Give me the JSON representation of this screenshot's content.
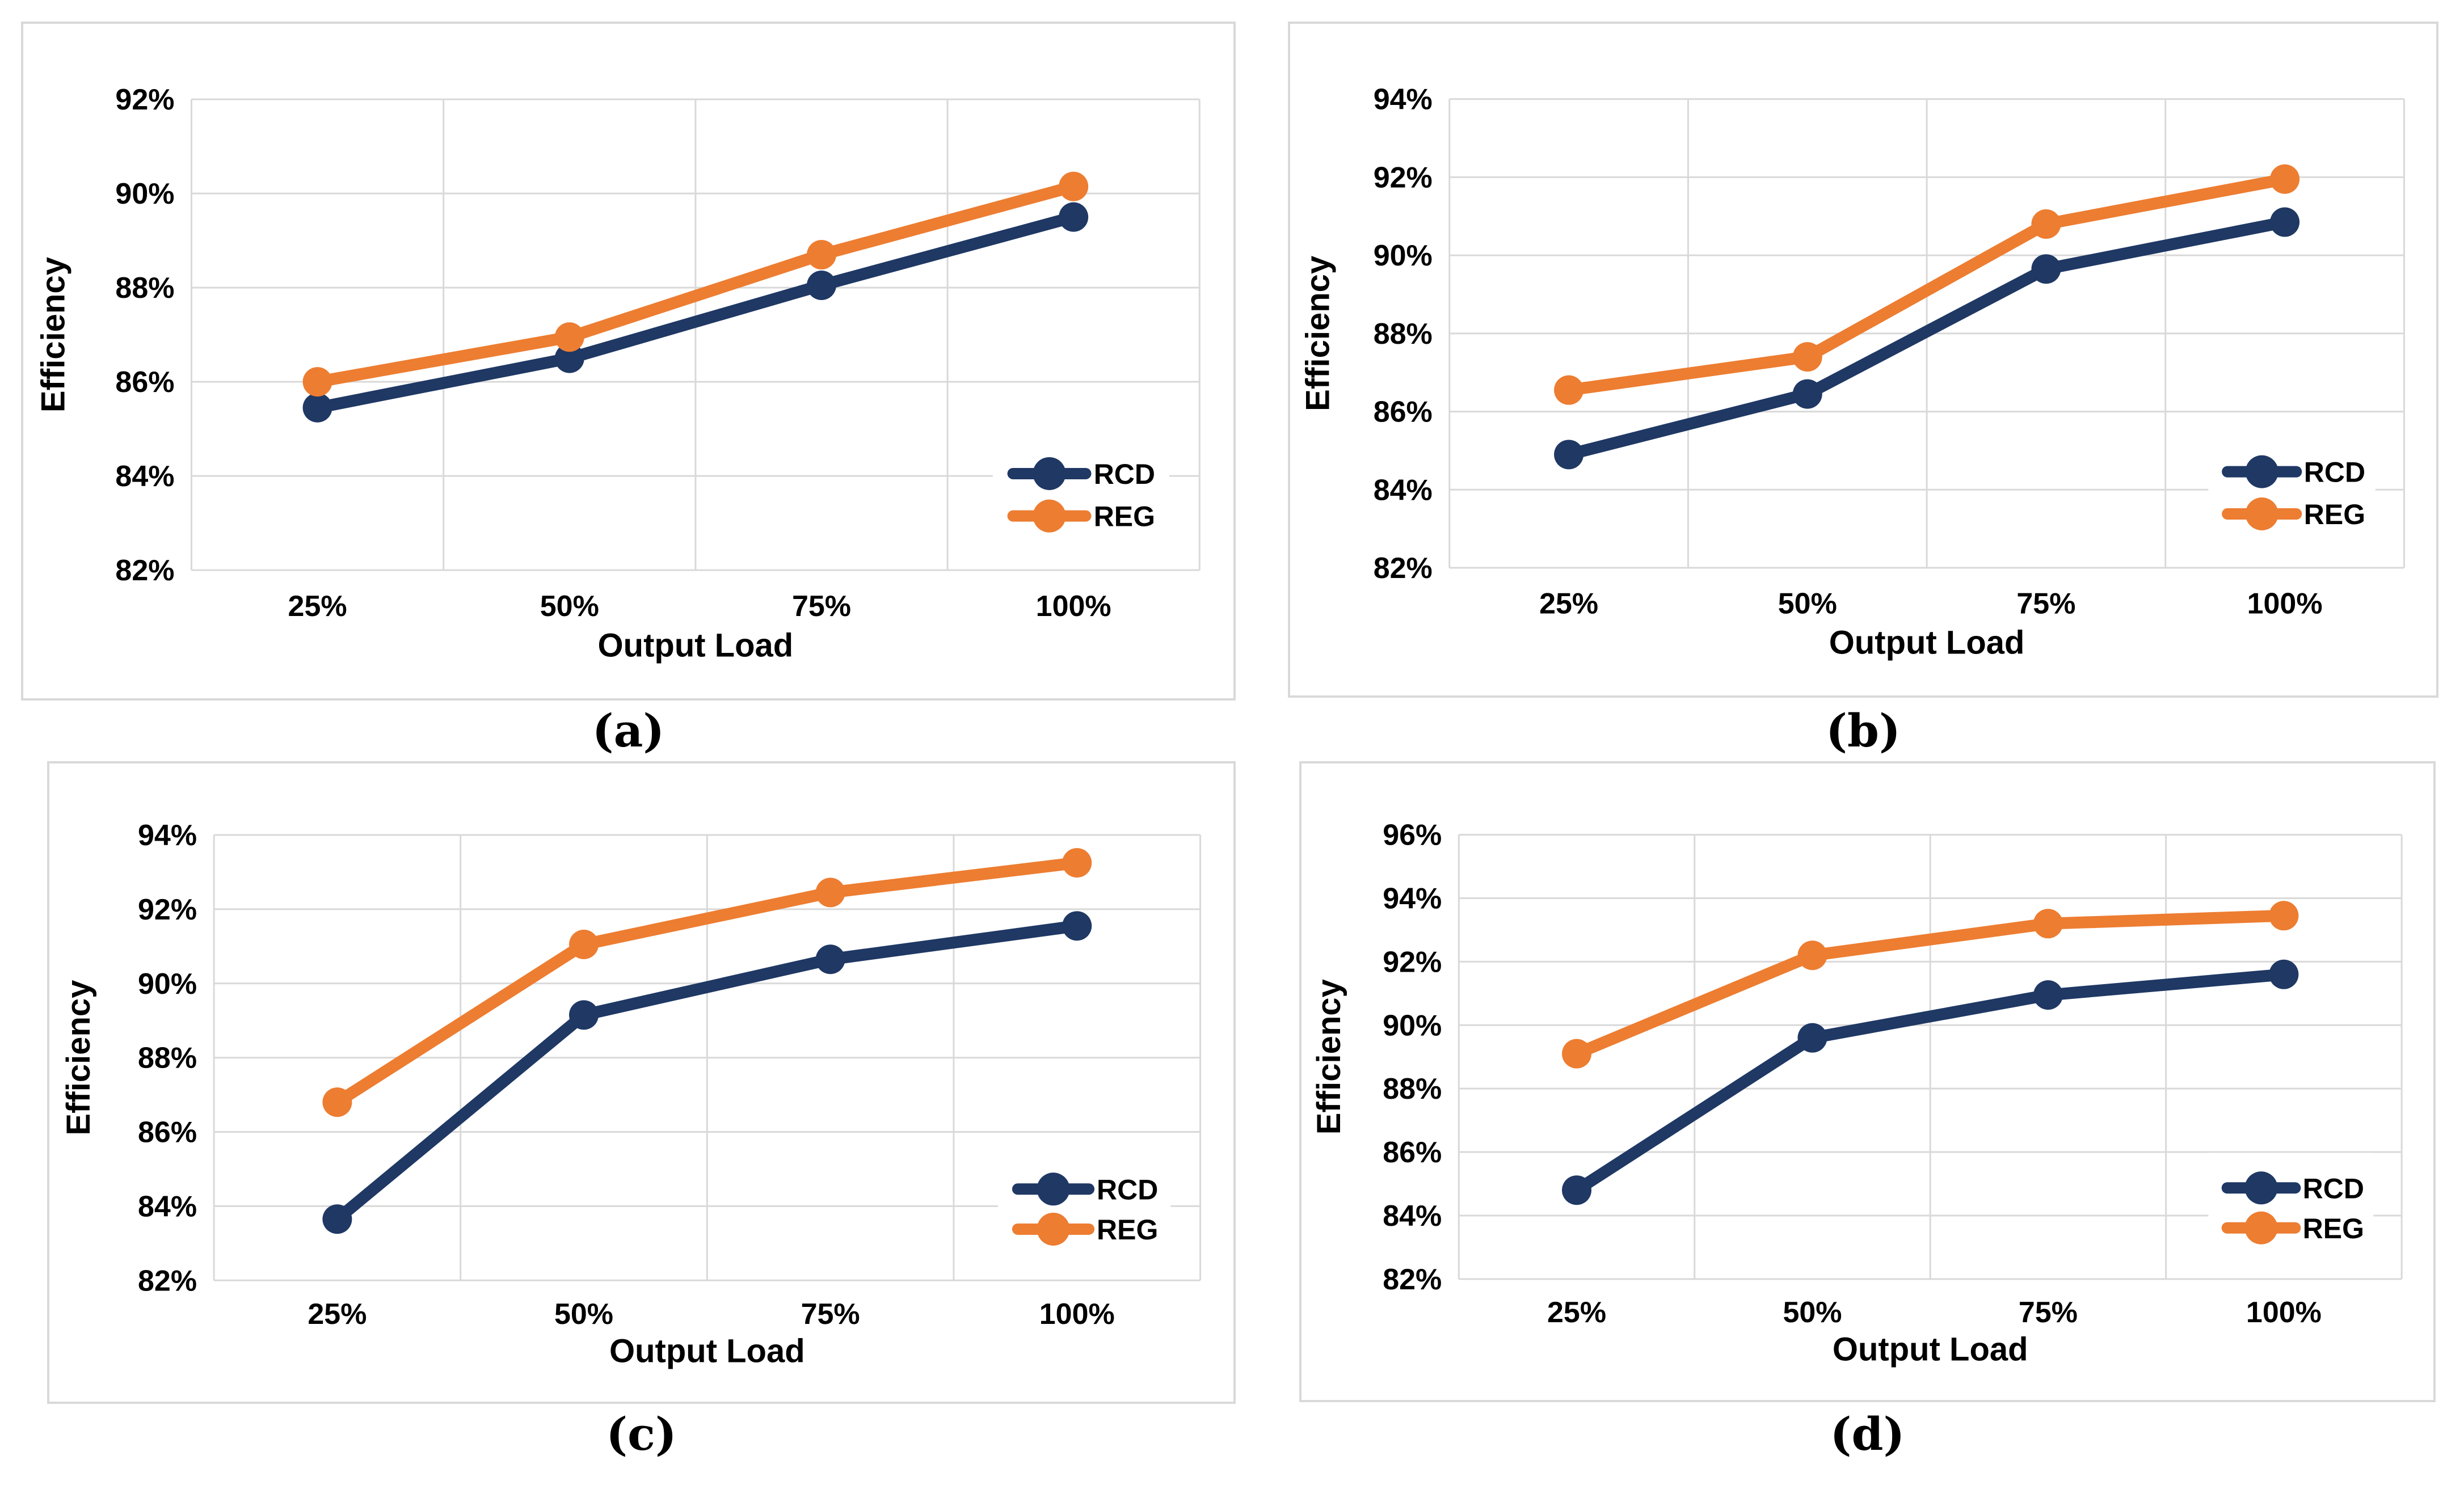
{
  "page": {
    "background": "#ffffff"
  },
  "theme": {
    "rcd_color": "#1f3864",
    "reg_color": "#ed7d31",
    "grid_color": "#d9d9d9",
    "axis_text_color": "#000000",
    "panel_border_color": "#d9d9d9",
    "legend_background": "#ffffff"
  },
  "chart_data": [
    {
      "id": "a",
      "label": "(a)",
      "type": "line",
      "xlabel": "Output Load",
      "ylabel": "Efficiency",
      "categories": [
        "25%",
        "50%",
        "75%",
        "100%"
      ],
      "ylim": [
        82,
        92
      ],
      "y_step": 2,
      "y_tick_suffix": "%",
      "grid": true,
      "legend_position": "inside-lower-right",
      "series": [
        {
          "name": "RCD",
          "color": "#1f3864",
          "values": [
            85.45,
            86.5,
            88.05,
            89.5
          ]
        },
        {
          "name": "REG",
          "color": "#ed7d31",
          "values": [
            86.0,
            86.95,
            88.7,
            90.15
          ]
        }
      ]
    },
    {
      "id": "b",
      "label": "(b)",
      "type": "line",
      "xlabel": "Output Load",
      "ylabel": "Efficiency",
      "categories": [
        "25%",
        "50%",
        "75%",
        "100%"
      ],
      "ylim": [
        82,
        94
      ],
      "y_step": 2,
      "y_tick_suffix": "%",
      "grid": true,
      "legend_position": "inside-lower-right",
      "series": [
        {
          "name": "RCD",
          "color": "#1f3864",
          "values": [
            84.9,
            86.45,
            89.65,
            90.85
          ]
        },
        {
          "name": "REG",
          "color": "#ed7d31",
          "values": [
            86.55,
            87.4,
            90.8,
            91.95
          ]
        }
      ]
    },
    {
      "id": "c",
      "label": "(c)",
      "type": "line",
      "xlabel": "Output Load",
      "ylabel": "Efficiency",
      "categories": [
        "25%",
        "50%",
        "75%",
        "100%"
      ],
      "ylim": [
        82,
        94
      ],
      "y_step": 2,
      "y_tick_suffix": "%",
      "grid": true,
      "legend_position": "inside-lower-right",
      "series": [
        {
          "name": "RCD",
          "color": "#1f3864",
          "values": [
            83.65,
            89.15,
            90.65,
            91.55
          ]
        },
        {
          "name": "REG",
          "color": "#ed7d31",
          "values": [
            86.8,
            91.05,
            92.45,
            93.25
          ]
        }
      ]
    },
    {
      "id": "d",
      "label": "(d)",
      "type": "line",
      "xlabel": "Output Load",
      "ylabel": "Efficiency",
      "categories": [
        "25%",
        "50%",
        "75%",
        "100%"
      ],
      "ylim": [
        82,
        96
      ],
      "y_step": 2,
      "y_tick_suffix": "%",
      "grid": true,
      "legend_position": "inside-lower-right",
      "series": [
        {
          "name": "RCD",
          "color": "#1f3864",
          "values": [
            84.8,
            89.6,
            90.95,
            91.6
          ]
        },
        {
          "name": "REG",
          "color": "#ed7d31",
          "values": [
            89.1,
            92.2,
            93.2,
            93.45
          ]
        }
      ]
    }
  ]
}
